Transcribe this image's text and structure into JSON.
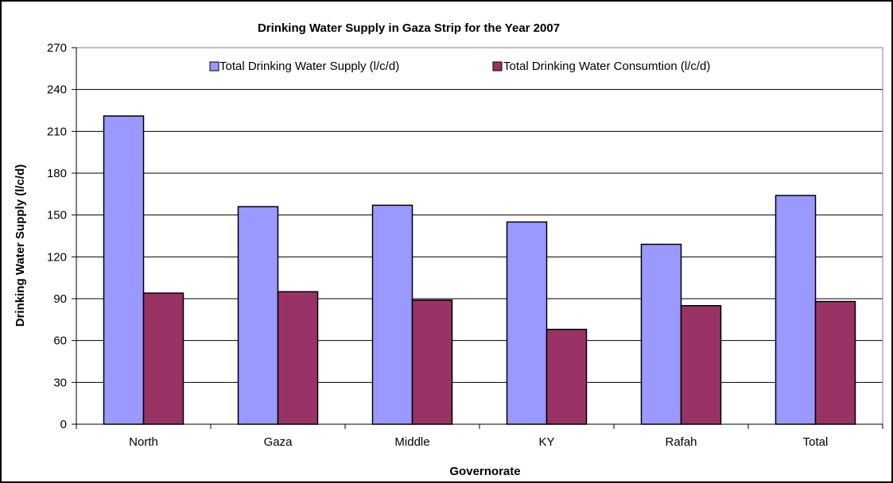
{
  "chart_data": {
    "type": "bar",
    "title": "Drinking Water Supply in Gaza Strip for the Year 2007",
    "xlabel": "Governorate",
    "ylabel": "Drinking Water Supply (l/c/d)",
    "categories": [
      "North",
      "Gaza",
      "Middle",
      "KY",
      "Rafah",
      "Total"
    ],
    "series": [
      {
        "name": "Total Drinking Water Supply (l/c/d)",
        "color": "#9999FF",
        "values": [
          221,
          156,
          157,
          145,
          129,
          164
        ]
      },
      {
        "name": "Total Drinking Water Consumtion (l/c/d)",
        "color": "#993366",
        "values": [
          94,
          95,
          89,
          68,
          85,
          88
        ]
      }
    ],
    "ylim": [
      0,
      270
    ],
    "yticks": [
      0,
      30,
      60,
      90,
      120,
      150,
      180,
      210,
      240,
      270
    ],
    "grid": true,
    "legend": "top"
  }
}
